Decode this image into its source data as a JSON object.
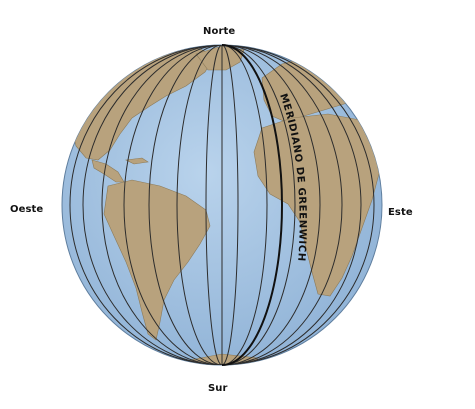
{
  "labels": {
    "north": "Norte",
    "south": "Sur",
    "west": "Oeste",
    "east": "Este",
    "meridian": "MERIDIANO DE GREENWICH"
  },
  "colors": {
    "ocean": "#a9c6e4",
    "land": "#b8a27d",
    "meridian_lines": "#2c2c2c",
    "background": "#ffffff"
  }
}
